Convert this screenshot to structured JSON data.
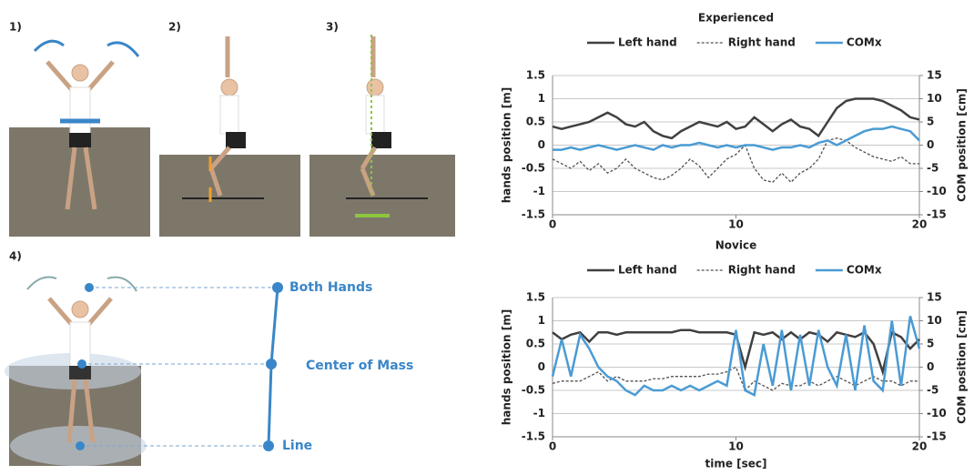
{
  "figure": {
    "panel_labels": [
      "1)",
      "2)",
      "3)",
      "4)"
    ],
    "annotations": [
      "Both Hands",
      "Center of Mass",
      "Line"
    ]
  },
  "chart_data": [
    {
      "type": "line",
      "title": "Experienced",
      "ylabel": "hands position [m]",
      "y2label": "COM position [cm]",
      "x": [
        0,
        0.5,
        1,
        1.5,
        2,
        2.5,
        3,
        3.5,
        4,
        4.5,
        5,
        5.5,
        6,
        6.5,
        7,
        7.5,
        8,
        8.5,
        9,
        9.5,
        10,
        10.5,
        11,
        11.5,
        12,
        12.5,
        13,
        13.5,
        14,
        14.5,
        15,
        15.5,
        16,
        16.5,
        17,
        17.5,
        18,
        18.5,
        19,
        19.5,
        20
      ],
      "xlim": [
        0,
        20
      ],
      "xticks": [
        0,
        10,
        20
      ],
      "ylim": [
        -1.5,
        1.5
      ],
      "yticks": [
        -1.5,
        -1,
        -0.5,
        0,
        0.5,
        1,
        1.5
      ],
      "y2lim": [
        -15,
        15
      ],
      "y2ticks": [
        -15,
        -10,
        -5,
        0,
        5,
        10,
        15
      ],
      "grid": true,
      "series": [
        {
          "name": "Left hand",
          "color": "#404040",
          "line_style": "solid",
          "values": [
            0.4,
            0.35,
            0.4,
            0.45,
            0.5,
            0.6,
            0.7,
            0.6,
            0.45,
            0.4,
            0.5,
            0.3,
            0.2,
            0.15,
            0.3,
            0.4,
            0.5,
            0.45,
            0.4,
            0.5,
            0.35,
            0.4,
            0.6,
            0.45,
            0.3,
            0.45,
            0.55,
            0.4,
            0.35,
            0.2,
            0.5,
            0.8,
            0.95,
            1.0,
            1.0,
            1.0,
            0.95,
            0.85,
            0.75,
            0.6,
            0.55
          ]
        },
        {
          "name": "Right hand",
          "color": "#505050",
          "line_style": "dashed",
          "values": [
            -0.3,
            -0.4,
            -0.5,
            -0.35,
            -0.55,
            -0.4,
            -0.6,
            -0.5,
            -0.3,
            -0.5,
            -0.6,
            -0.7,
            -0.75,
            -0.65,
            -0.5,
            -0.3,
            -0.45,
            -0.7,
            -0.5,
            -0.3,
            -0.2,
            0.0,
            -0.5,
            -0.75,
            -0.8,
            -0.6,
            -0.8,
            -0.6,
            -0.5,
            -0.3,
            0.1,
            0.15,
            0.1,
            -0.05,
            -0.15,
            -0.25,
            -0.3,
            -0.35,
            -0.25,
            -0.4,
            -0.4
          ]
        },
        {
          "name": "COMx",
          "color": "#4a9bd4",
          "line_style": "solid",
          "axis": "y2",
          "values": [
            -1,
            -1,
            -0.5,
            -1,
            -0.5,
            0,
            -0.5,
            -1,
            -0.5,
            0,
            -0.5,
            -1,
            0,
            -0.5,
            0,
            0,
            0.5,
            0,
            -0.5,
            0,
            -0.5,
            0,
            0,
            -0.5,
            -1,
            -0.5,
            -0.5,
            0,
            -0.5,
            0.5,
            1,
            0,
            1,
            2,
            3,
            3.5,
            3.5,
            4,
            3.5,
            3,
            1
          ]
        }
      ]
    },
    {
      "type": "line",
      "title": "Novice",
      "xlabel": "time [sec]",
      "ylabel": "hands position [m]",
      "y2label": "COM position [cm]",
      "x": [
        0,
        0.5,
        1,
        1.5,
        2,
        2.5,
        3,
        3.5,
        4,
        4.5,
        5,
        5.5,
        6,
        6.5,
        7,
        7.5,
        8,
        8.5,
        9,
        9.5,
        10,
        10.5,
        11,
        11.5,
        12,
        12.5,
        13,
        13.5,
        14,
        14.5,
        15,
        15.5,
        16,
        16.5,
        17,
        17.5,
        18,
        18.5,
        19,
        19.5,
        20
      ],
      "xlim": [
        0,
        20
      ],
      "xticks": [
        0,
        10,
        20
      ],
      "ylim": [
        -1.5,
        1.5
      ],
      "yticks": [
        -1.5,
        -1,
        -0.5,
        0,
        0.5,
        1,
        1.5
      ],
      "y2lim": [
        -15,
        15
      ],
      "y2ticks": [
        -15,
        -10,
        -5,
        0,
        5,
        10,
        15
      ],
      "grid": true,
      "series": [
        {
          "name": "Left hand",
          "color": "#404040",
          "line_style": "solid",
          "values": [
            0.75,
            0.6,
            0.7,
            0.75,
            0.55,
            0.75,
            0.75,
            0.7,
            0.75,
            0.75,
            0.75,
            0.75,
            0.75,
            0.75,
            0.8,
            0.8,
            0.75,
            0.75,
            0.75,
            0.75,
            0.7,
            0.0,
            0.75,
            0.7,
            0.75,
            0.6,
            0.75,
            0.6,
            0.75,
            0.7,
            0.55,
            0.75,
            0.7,
            0.65,
            0.75,
            0.5,
            -0.1,
            0.75,
            0.65,
            0.4,
            0.6
          ]
        },
        {
          "name": "Right hand",
          "color": "#505050",
          "line_style": "dashed",
          "values": [
            -0.35,
            -0.3,
            -0.3,
            -0.3,
            -0.2,
            -0.1,
            -0.3,
            -0.2,
            -0.3,
            -0.3,
            -0.3,
            -0.25,
            -0.25,
            -0.2,
            -0.2,
            -0.2,
            -0.2,
            -0.15,
            -0.15,
            -0.1,
            0.0,
            -0.5,
            -0.3,
            -0.4,
            -0.5,
            -0.35,
            -0.4,
            -0.4,
            -0.3,
            -0.4,
            -0.3,
            -0.2,
            -0.3,
            -0.4,
            -0.3,
            -0.2,
            -0.3,
            -0.3,
            -0.4,
            -0.3,
            -0.3
          ]
        },
        {
          "name": "COMx",
          "color": "#4a9bd4",
          "line_style": "solid",
          "axis": "y2",
          "values": [
            -2,
            6,
            -2,
            7,
            4,
            0,
            -2,
            -3,
            -5,
            -6,
            -4,
            -5,
            -5,
            -4,
            -5,
            -4,
            -5,
            -4,
            -3,
            -4,
            8,
            -5,
            -6,
            5,
            -4,
            8,
            -5,
            7,
            -4,
            8,
            0,
            -4,
            7,
            -5,
            9,
            -3,
            -5,
            10,
            -4,
            11,
            4
          ]
        }
      ]
    }
  ]
}
